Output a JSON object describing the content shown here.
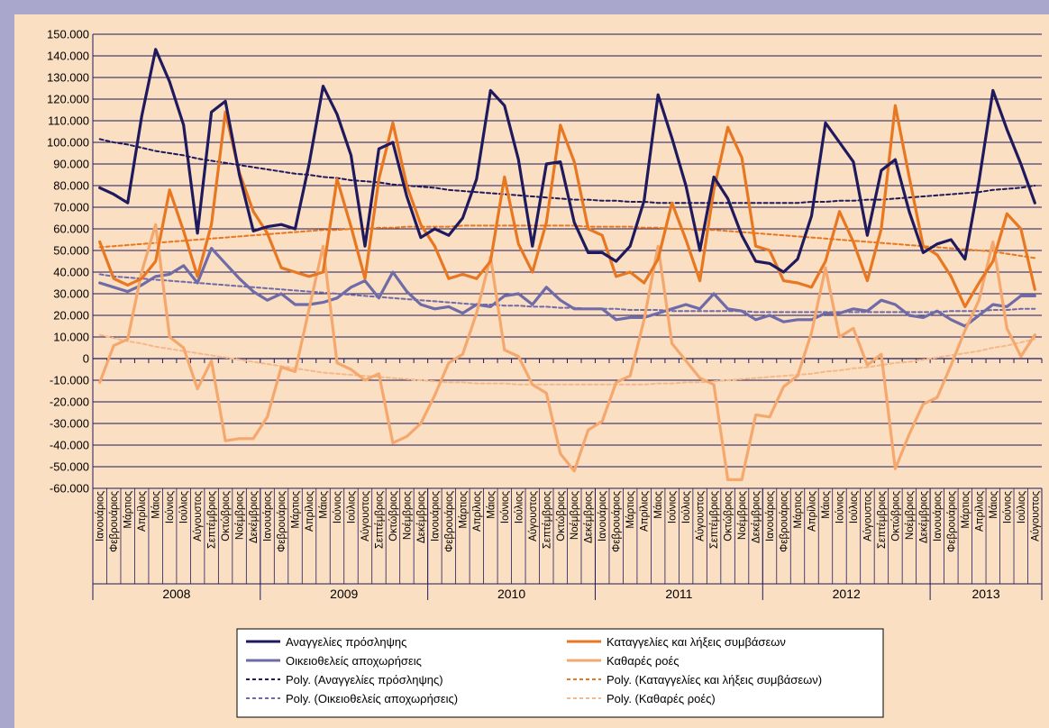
{
  "chart_data": {
    "type": "line",
    "ylim": [
      -60000,
      150000
    ],
    "y_ticks": [
      "150.000",
      "140.000",
      "130.000",
      "120.000",
      "110.000",
      "100.000",
      "90.000",
      "80.000",
      "70.000",
      "60.000",
      "50.000",
      "40.000",
      "30.000",
      "20.000",
      "10.000",
      "0",
      "-10.000",
      "-20.000",
      "-30.000",
      "-40.000",
      "-50.000",
      "-60.000"
    ],
    "months": [
      "Ιανουάριος",
      "Φεβρουάριος",
      "Μάρτιος",
      "Απρίλιος",
      "Μάιος",
      "Ιούνιος",
      "Ιούλιος",
      "Αύγουστος",
      "Σεπτέμβριος",
      "Οκτώβριος",
      "Νοέμβριος",
      "Δεκέμβριος"
    ],
    "years": [
      {
        "label": "2008",
        "months": 12
      },
      {
        "label": "2009",
        "months": 12
      },
      {
        "label": "2010",
        "months": 12
      },
      {
        "label": "2011",
        "months": 12
      },
      {
        "label": "2012",
        "months": 12
      },
      {
        "label": "2013",
        "months": 8
      }
    ],
    "series": [
      {
        "name": "Αναγγελίες πρόσληψης",
        "color": "#1f1a5e",
        "dash": false,
        "values": [
          79000,
          76000,
          72000,
          112000,
          143000,
          128000,
          108000,
          58000,
          114000,
          119000,
          85000,
          59000,
          61000,
          62000,
          60000,
          90000,
          126000,
          113000,
          94000,
          52000,
          97000,
          100000,
          75000,
          56000,
          60000,
          57000,
          65000,
          83000,
          124000,
          117000,
          92000,
          52000,
          90000,
          91000,
          63000,
          49000,
          49000,
          45000,
          52000,
          73000,
          122000,
          102000,
          80000,
          50000,
          84000,
          74000,
          57000,
          45000,
          44000,
          40000,
          46000,
          66000,
          109000,
          100000,
          91000,
          57000,
          87000,
          92000,
          68000,
          49000,
          53000,
          55000,
          46000,
          82000,
          124000,
          106000,
          90000,
          72000
        ]
      },
      {
        "name": "Οικειοθελείς αποχωρήσεις",
        "color": "#6f6aa8",
        "dash": false,
        "values": [
          35000,
          33000,
          31000,
          34000,
          38000,
          39000,
          43000,
          35000,
          51000,
          44000,
          37000,
          31000,
          27000,
          30000,
          25000,
          25000,
          26000,
          28000,
          33000,
          36000,
          28000,
          40000,
          31000,
          25000,
          23000,
          24000,
          21000,
          25000,
          24000,
          29000,
          30000,
          25000,
          33000,
          27000,
          23000,
          23000,
          23000,
          18000,
          19000,
          19000,
          21000,
          23000,
          25000,
          23000,
          30000,
          23000,
          22000,
          18000,
          20000,
          17000,
          18000,
          18000,
          21000,
          21000,
          23000,
          22000,
          27000,
          25000,
          20000,
          19000,
          22000,
          18000,
          15000,
          20000,
          25000,
          24000,
          29000,
          29000
        ]
      },
      {
        "name": "Καταγγελίες και λήξεις συμβάσεων",
        "color": "#e87722",
        "dash": false,
        "values": [
          54000,
          37000,
          34000,
          37000,
          45000,
          78000,
          59000,
          38000,
          62000,
          114000,
          86000,
          68000,
          58000,
          42000,
          40000,
          38000,
          40000,
          83000,
          61000,
          37000,
          83000,
          109000,
          80000,
          62000,
          52000,
          37000,
          39000,
          37000,
          45000,
          84000,
          53000,
          40000,
          63000,
          108000,
          91000,
          60000,
          57000,
          38000,
          40000,
          35000,
          46000,
          72000,
          55000,
          36000,
          78000,
          107000,
          93000,
          52000,
          50000,
          36000,
          35000,
          33000,
          45000,
          68000,
          54000,
          36000,
          60000,
          117000,
          84000,
          52000,
          48000,
          38000,
          24000,
          35000,
          45000,
          67000,
          60000,
          32000
        ]
      },
      {
        "name": "Καθαρές ροές",
        "color": "#f5a86e",
        "dash": false,
        "values": [
          -11000,
          6000,
          9000,
          40000,
          62000,
          10000,
          5000,
          -14000,
          -1000,
          -38000,
          -37000,
          -37000,
          -27000,
          -4000,
          -6000,
          23000,
          52000,
          -2000,
          -5000,
          -10000,
          -7000,
          -39000,
          -36000,
          -30000,
          -17000,
          -2000,
          2000,
          21000,
          47000,
          4000,
          1000,
          -12000,
          -16000,
          -44000,
          -52000,
          -33000,
          -29000,
          -11000,
          -8000,
          18000,
          52000,
          7000,
          -1000,
          -9000,
          -12000,
          -56000,
          -56000,
          -26000,
          -27000,
          -13000,
          -8000,
          12000,
          42000,
          10000,
          14000,
          -3000,
          2000,
          -51000,
          -35000,
          -21000,
          -18000,
          -3000,
          13000,
          27000,
          54000,
          14000,
          1000,
          11000
        ]
      },
      {
        "name": "Poly. (Αναγγελίες πρόσληψης)",
        "color": "#1f1a5e",
        "dash": true,
        "values": [
          101500,
          100000,
          99000,
          97500,
          96000,
          95000,
          94000,
          92500,
          91500,
          90500,
          89500,
          88500,
          87500,
          86500,
          85500,
          85000,
          84000,
          83500,
          82500,
          82000,
          81500,
          80500,
          80000,
          79500,
          79000,
          78000,
          77500,
          77000,
          76500,
          76000,
          75500,
          75000,
          74500,
          74000,
          73500,
          73500,
          73000,
          73000,
          72500,
          72500,
          72000,
          72000,
          72000,
          72000,
          72000,
          72000,
          72000,
          72000,
          72000,
          72000,
          72000,
          72500,
          72500,
          73000,
          73000,
          73500,
          73500,
          74000,
          74500,
          75000,
          75500,
          76000,
          76500,
          77000,
          78000,
          78500,
          79000,
          80000
        ]
      },
      {
        "name": "Poly. (Οικειοθελείς αποχωρήσεις)",
        "color": "#6f6aa8",
        "dash": true,
        "values": [
          39000,
          38000,
          37500,
          37000,
          36500,
          36000,
          35500,
          35000,
          34500,
          34000,
          33500,
          33000,
          32500,
          32000,
          31500,
          31000,
          30500,
          30000,
          29500,
          29000,
          28500,
          28000,
          27500,
          27000,
          26500,
          26000,
          25500,
          25000,
          25000,
          24500,
          24500,
          24000,
          24000,
          23500,
          23500,
          23000,
          23000,
          23000,
          22500,
          22500,
          22500,
          22000,
          22000,
          22000,
          22000,
          22000,
          22000,
          21500,
          21500,
          21500,
          21500,
          21500,
          21500,
          21500,
          21500,
          21500,
          21500,
          21500,
          21500,
          21500,
          21500,
          22000,
          22000,
          22000,
          22500,
          22500,
          23000,
          23000
        ]
      },
      {
        "name": "Poly. (Καταγγελίες και λήξεις συμβάσεων)",
        "color": "#e87722",
        "dash": true,
        "values": [
          51500,
          52000,
          52500,
          53000,
          53500,
          54000,
          54500,
          55000,
          55500,
          56000,
          56500,
          57000,
          57500,
          58000,
          58500,
          59000,
          59500,
          59500,
          60000,
          60000,
          60500,
          60500,
          61000,
          61000,
          61000,
          61000,
          61500,
          61500,
          61500,
          61500,
          61500,
          61500,
          61500,
          61500,
          61500,
          61000,
          61000,
          61000,
          61000,
          60500,
          60500,
          60000,
          60000,
          59500,
          59500,
          59000,
          58500,
          58000,
          57500,
          57000,
          56500,
          56000,
          55500,
          55000,
          54500,
          54000,
          53500,
          53000,
          52500,
          52000,
          51500,
          51000,
          50500,
          50000,
          49500,
          48500,
          47500,
          46500
        ]
      },
      {
        "name": "Poly. (Καθαρές ροές)",
        "color": "#f5b88a",
        "dash": true,
        "values": [
          11000,
          9500,
          8000,
          7000,
          5500,
          4500,
          3500,
          2500,
          1500,
          500,
          -500,
          -1500,
          -2500,
          -3500,
          -4500,
          -5500,
          -6500,
          -7000,
          -7500,
          -8000,
          -8500,
          -9000,
          -9500,
          -10000,
          -10500,
          -11000,
          -11000,
          -11500,
          -11500,
          -11500,
          -12000,
          -12000,
          -12000,
          -12000,
          -12000,
          -12000,
          -12000,
          -12000,
          -12000,
          -12000,
          -11500,
          -11500,
          -11000,
          -11000,
          -10500,
          -10000,
          -9500,
          -9000,
          -8500,
          -8000,
          -7500,
          -7000,
          -6000,
          -5500,
          -4500,
          -4000,
          -3000,
          -2000,
          -1500,
          -500,
          500,
          1500,
          2500,
          3500,
          5000,
          6000,
          7500,
          9000
        ]
      }
    ]
  }
}
